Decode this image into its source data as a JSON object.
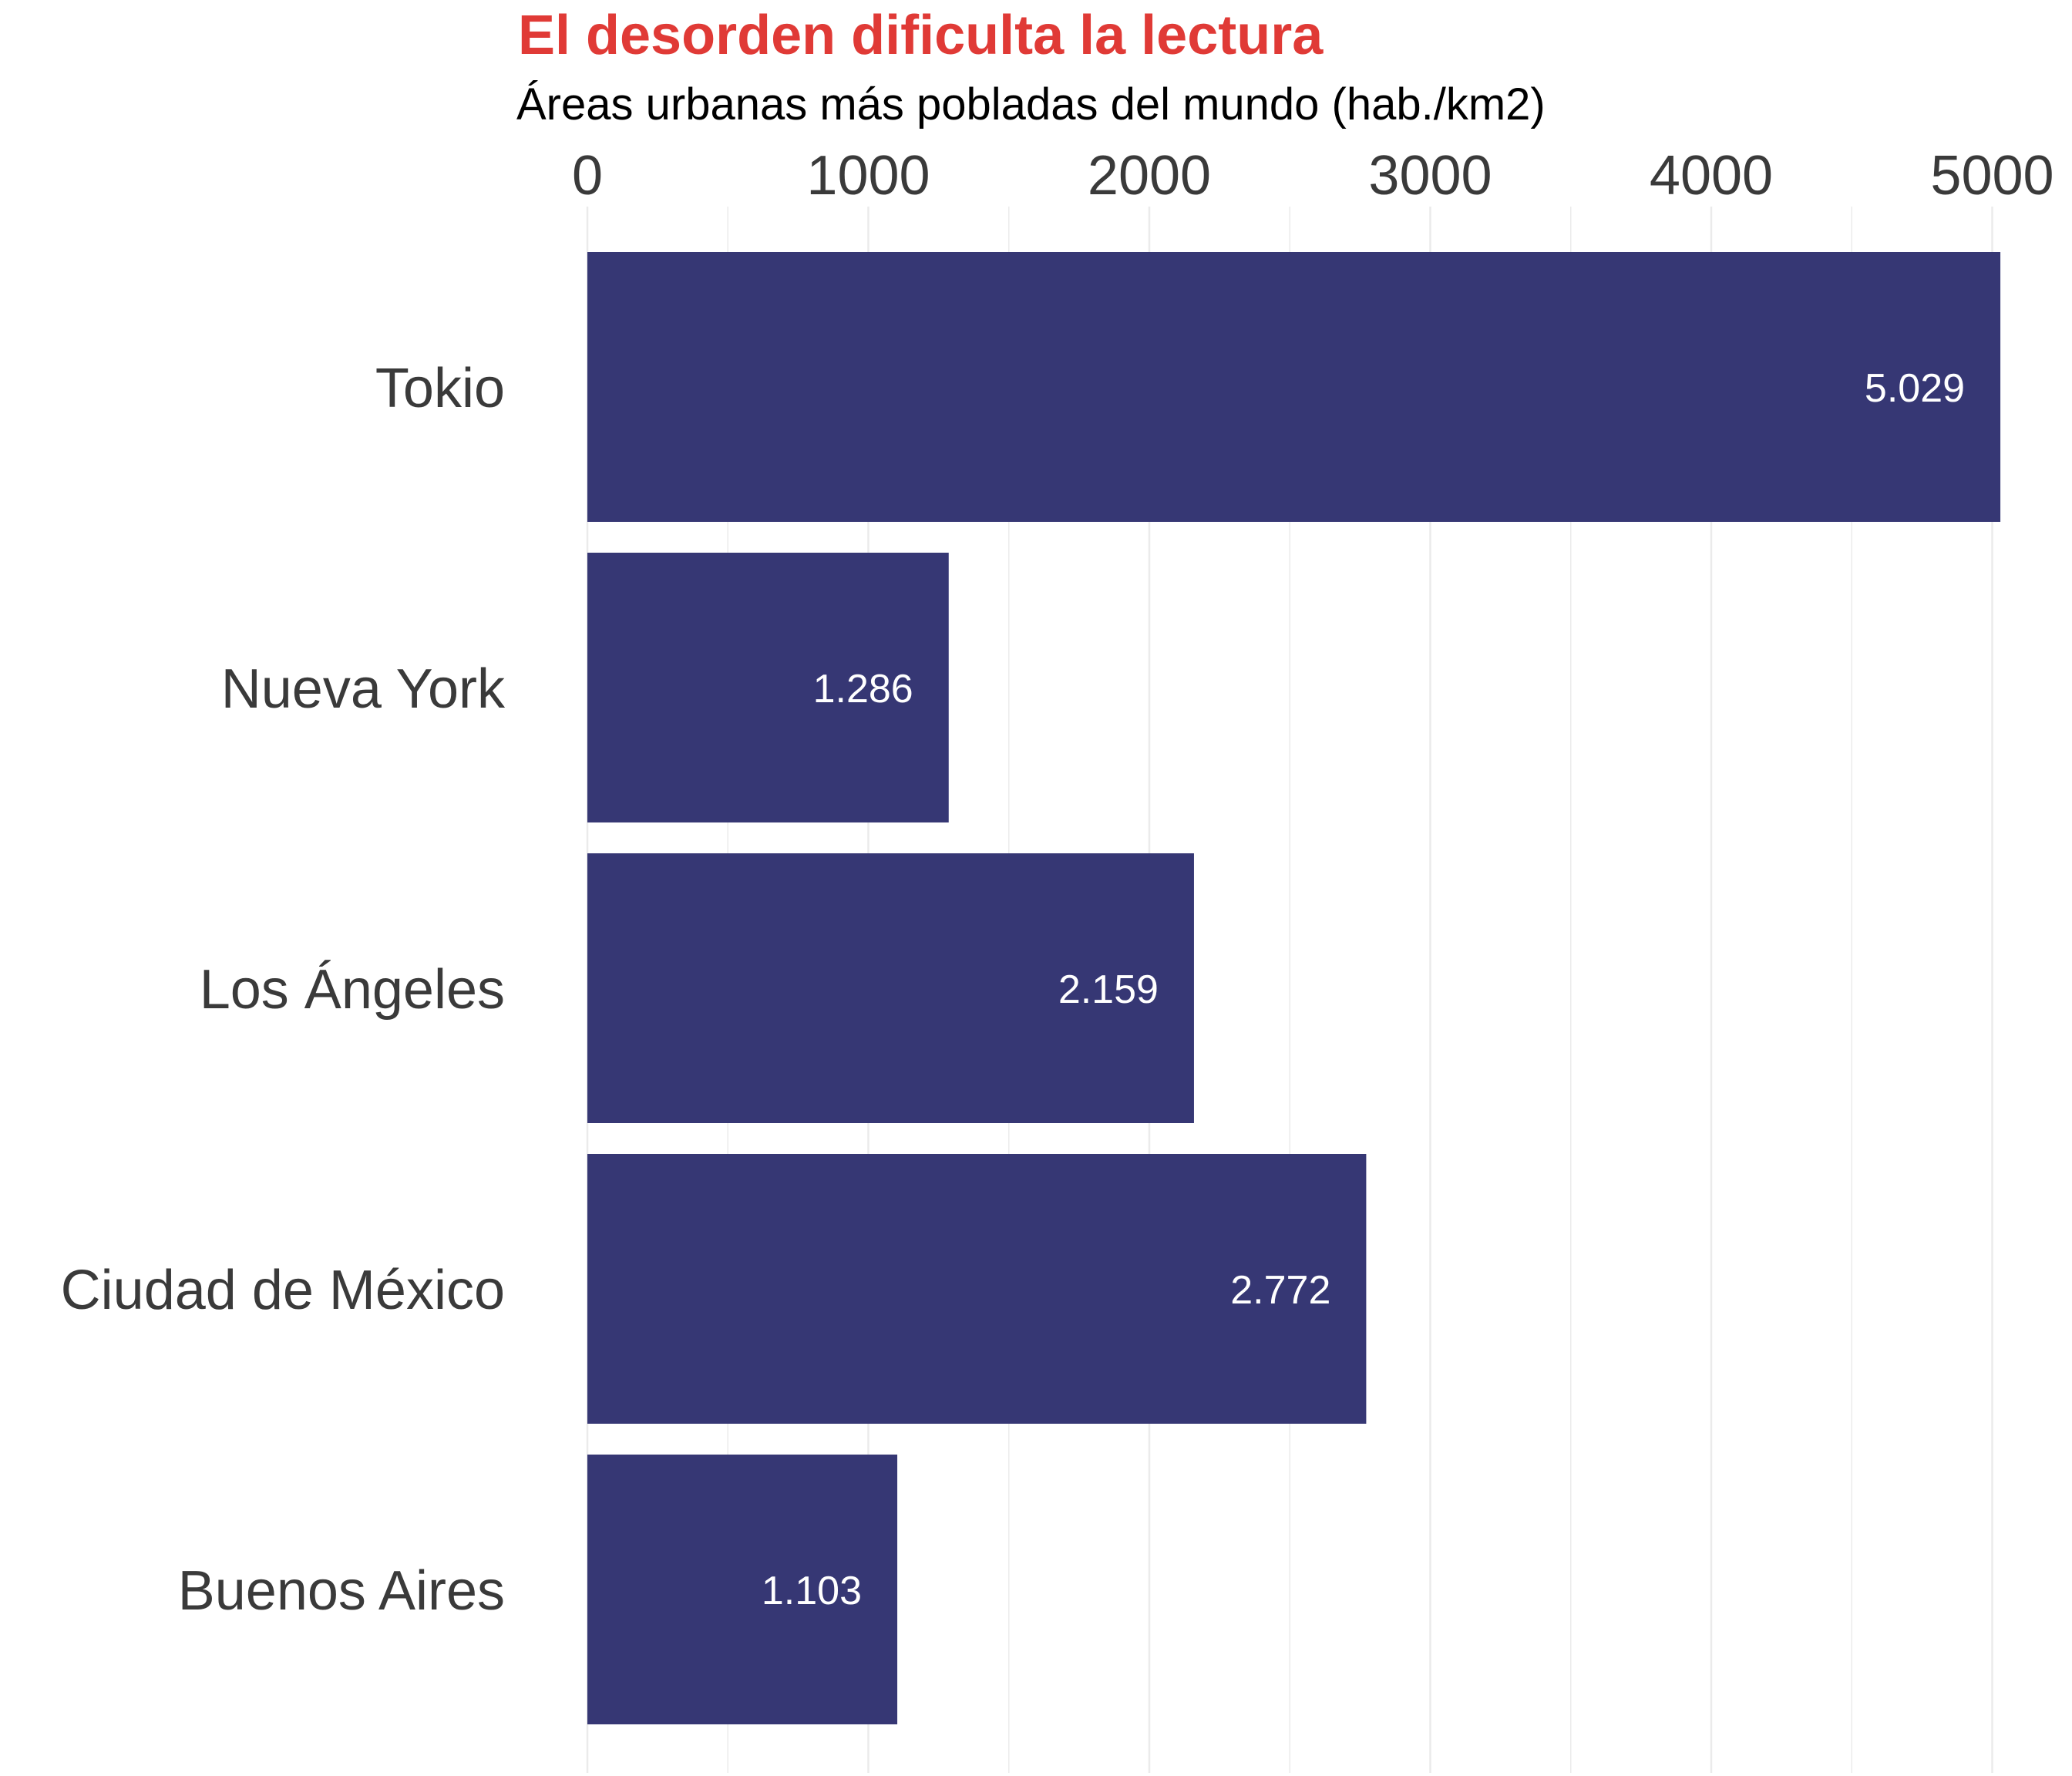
{
  "chart_data": {
    "type": "bar",
    "orientation": "horizontal",
    "title": "El desorden dificulta la lectura",
    "subtitle": "Áreas urbanas más pobladas del mundo (hab./km2)",
    "xlabel": "",
    "ylabel": "",
    "categories": [
      "Tokio",
      "Nueva York",
      "Los Ángeles",
      "Ciudad de México",
      "Buenos Aires"
    ],
    "values": [
      5029,
      1286,
      2159,
      2772,
      1103
    ],
    "data_labels": [
      "5.029",
      "1.286",
      "2.159",
      "2.772",
      "1.103"
    ],
    "x_ticks": [
      0,
      1000,
      2000,
      3000,
      4000,
      5000
    ],
    "x_tick_labels": [
      "0",
      "1000",
      "2000",
      "3000",
      "4000",
      "5000"
    ],
    "xlim": [
      0,
      5100
    ],
    "x_axis_position": "top",
    "grid": true,
    "colors": {
      "bar": "#363774",
      "title": "#e03a36",
      "grid": "#ebebeb",
      "text": "#3a3a3a",
      "data_label": "#ffffff"
    }
  }
}
